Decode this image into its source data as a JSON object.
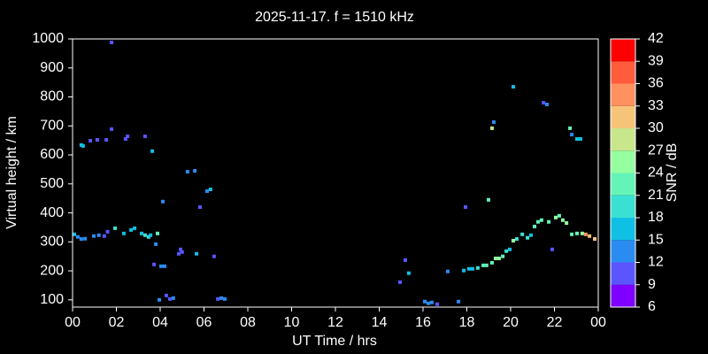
{
  "chart_data": {
    "type": "scatter",
    "title": "2025-11-17. f = 1510 kHz",
    "x_label": "UT Time / hrs",
    "y_label": "Virtual height / km",
    "xlim": [
      0,
      24
    ],
    "xticks": [
      {
        "value": 0,
        "label": "00"
      },
      {
        "value": 2,
        "label": "02"
      },
      {
        "value": 4,
        "label": "04"
      },
      {
        "value": 6,
        "label": "06"
      },
      {
        "value": 8,
        "label": "08"
      },
      10,
      12,
      14,
      16,
      18,
      20,
      22,
      {
        "value": 24,
        "label": "00"
      }
    ],
    "ylim": [
      75,
      1000
    ],
    "yticks": [
      100,
      200,
      300,
      400,
      500,
      600,
      700,
      800,
      900,
      1000
    ],
    "colorbar": {
      "label": "SNR / dB",
      "lim": [
        6,
        42
      ],
      "ticks": [
        6,
        9,
        12,
        15,
        18,
        21,
        24,
        27,
        30,
        33,
        36,
        39,
        42
      ],
      "colors": [
        "#8000ff",
        "#5a55ff",
        "#2a8cf0",
        "#10c0e4",
        "#3ae0d2",
        "#64f4b8",
        "#96ffa0",
        "#c8e68c",
        "#f6c478",
        "#ff9060",
        "#ff5c3c",
        "#ff0000"
      ]
    },
    "x": [
      0.08,
      0.24,
      0.4,
      0.57,
      0.97,
      1.2,
      1.45,
      1.6,
      1.94,
      2.34,
      2.67,
      2.83,
      3.15,
      3.31,
      3.47,
      3.56,
      3.88,
      3.8,
      3.72,
      3.96,
      4.04,
      4.2,
      4.28,
      4.44,
      4.6,
      4.85,
      4.93,
      5.0,
      5.66,
      6.46,
      6.63,
      6.79,
      6.95,
      0.4,
      0.48,
      0.81,
      1.13,
      1.54,
      1.78,
      2.42,
      2.51,
      3.31,
      3.64,
      4.12,
      5.25,
      5.58,
      5.82,
      6.14,
      6.3,
      1.78,
      14.95,
      15.19,
      15.35,
      16.08,
      16.24,
      16.4,
      16.65,
      17.13,
      17.62,
      17.86,
      17.94,
      18.1,
      18.26,
      18.5,
      18.75,
      18.99,
      18.9,
      19.15,
      19.31,
      19.47,
      19.64,
      19.8,
      19.96,
      20.12,
      20.28,
      20.53,
      20.77,
      20.93,
      21.09,
      21.25,
      21.41,
      21.74,
      21.9,
      22.06,
      22.22,
      22.38,
      22.55,
      22.79,
      23.03,
      23.27,
      23.43,
      23.6,
      23.84,
      19.15,
      19.23,
      20.12,
      21.5,
      21.66,
      22.71,
      22.79,
      23.03,
      23.19
    ],
    "values": [
      326,
      317,
      310,
      311,
      320,
      323,
      320,
      335,
      347,
      329,
      341,
      347,
      329,
      323,
      317,
      323,
      329,
      292,
      222,
      100,
      216,
      216,
      115,
      103,
      106,
      259,
      274,
      265,
      259,
      250,
      103,
      106,
      103,
      634,
      631,
      649,
      652,
      652,
      689,
      655,
      664,
      664,
      613,
      439,
      542,
      545,
      420,
      475,
      481,
      988,
      161,
      237,
      192,
      94,
      88,
      91,
      85,
      198,
      94,
      201,
      420,
      207,
      207,
      210,
      219,
      445,
      219,
      228,
      243,
      243,
      250,
      268,
      274,
      304,
      310,
      326,
      314,
      323,
      353,
      369,
      375,
      369,
      274,
      384,
      390,
      375,
      365,
      326,
      329,
      329,
      326,
      320,
      310,
      692,
      713,
      835,
      780,
      774,
      692,
      670,
      655,
      655
    ],
    "snr": [
      16,
      14,
      13,
      13,
      13,
      13,
      11,
      11,
      18,
      15,
      15,
      15,
      17,
      20,
      20,
      15,
      21,
      12,
      10,
      12,
      12,
      13,
      11,
      11,
      12,
      11,
      11,
      11,
      15,
      10,
      11,
      12,
      12,
      15,
      15,
      11,
      11,
      11,
      11,
      11,
      10,
      11,
      15,
      14,
      13,
      13,
      11,
      12,
      15,
      11,
      11,
      11,
      15,
      12,
      12,
      13,
      11,
      13,
      12,
      15,
      11,
      15,
      17,
      18,
      21,
      21,
      21,
      22,
      24,
      24,
      21,
      18,
      17,
      25,
      20,
      20,
      18,
      17,
      22,
      22,
      21,
      23,
      11,
      24,
      22,
      24,
      25,
      23,
      22,
      25,
      33,
      30,
      30,
      28,
      13,
      15,
      11,
      12,
      21,
      13,
      15,
      15
    ]
  }
}
